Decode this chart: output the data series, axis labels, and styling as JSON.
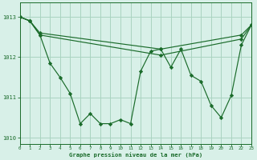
{
  "xlabel": "Graphe pression niveau de la mer (hPa)",
  "bg_color": "#d8f0e8",
  "grid_color": "#aad4c0",
  "line_color": "#1a6b2a",
  "series1_x": [
    0,
    1,
    2,
    3,
    4,
    5,
    6,
    7,
    8,
    9,
    10,
    11,
    12,
    13,
    14,
    15,
    16,
    17,
    18,
    19,
    20,
    21,
    22,
    23
  ],
  "series1_y": [
    1013.0,
    1012.9,
    1012.55,
    1011.85,
    1011.5,
    1011.1,
    1010.35,
    1010.6,
    1010.35,
    1010.35,
    1010.45,
    1010.35,
    1011.65,
    1012.15,
    1012.2,
    1011.75,
    1012.2,
    1011.55,
    1011.4,
    1010.8,
    1010.5,
    1011.05,
    1012.3,
    1012.8
  ],
  "series2_x": [
    0,
    1,
    2,
    14,
    22,
    23
  ],
  "series2_y": [
    1013.0,
    1012.9,
    1012.55,
    1012.05,
    1012.45,
    1012.8
  ],
  "series3_x": [
    0,
    1,
    2,
    14,
    22,
    23
  ],
  "series3_y": [
    1013.0,
    1012.9,
    1012.6,
    1012.2,
    1012.55,
    1012.8
  ],
  "ylim": [
    1009.85,
    1013.35
  ],
  "yticks": [
    1010,
    1011,
    1012,
    1013
  ],
  "xlim": [
    0,
    23
  ]
}
